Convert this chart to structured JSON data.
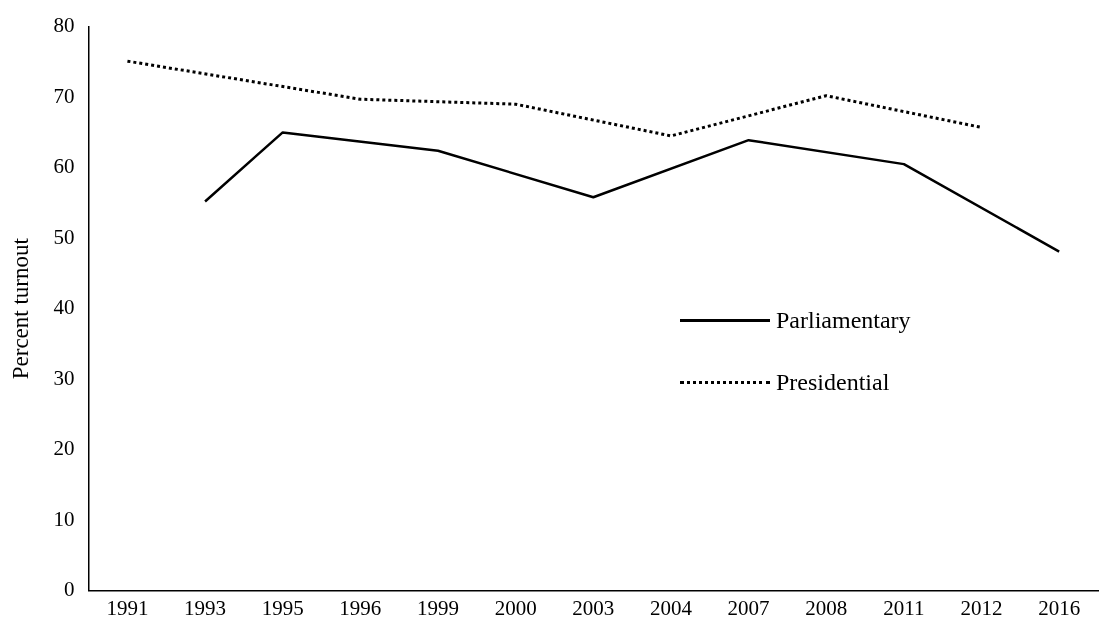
{
  "chart_data": {
    "type": "line",
    "ylabel": "Percent turnout",
    "categories": [
      "1991",
      "1993",
      "1995",
      "1996",
      "1999",
      "2000",
      "2003",
      "2004",
      "2007",
      "2008",
      "2011",
      "2012",
      "2016"
    ],
    "series": [
      {
        "name": "Parliamentary",
        "color": "#000000",
        "line_style": "solid",
        "values": [
          null,
          55.2,
          65.0,
          null,
          62.4,
          null,
          55.8,
          null,
          63.9,
          null,
          60.5,
          null,
          48.1
        ]
      },
      {
        "name": "Presidential",
        "color": "#000000",
        "line_style": "dotted",
        "values": [
          75.1,
          null,
          null,
          69.7,
          null,
          69.0,
          null,
          64.5,
          null,
          70.2,
          null,
          65.7,
          null
        ]
      }
    ],
    "ylim": [
      0,
      80
    ],
    "yticks": [
      0,
      10,
      20,
      30,
      40,
      50,
      60,
      70,
      80
    ],
    "grid": false,
    "legend": "right",
    "marker": "none"
  }
}
